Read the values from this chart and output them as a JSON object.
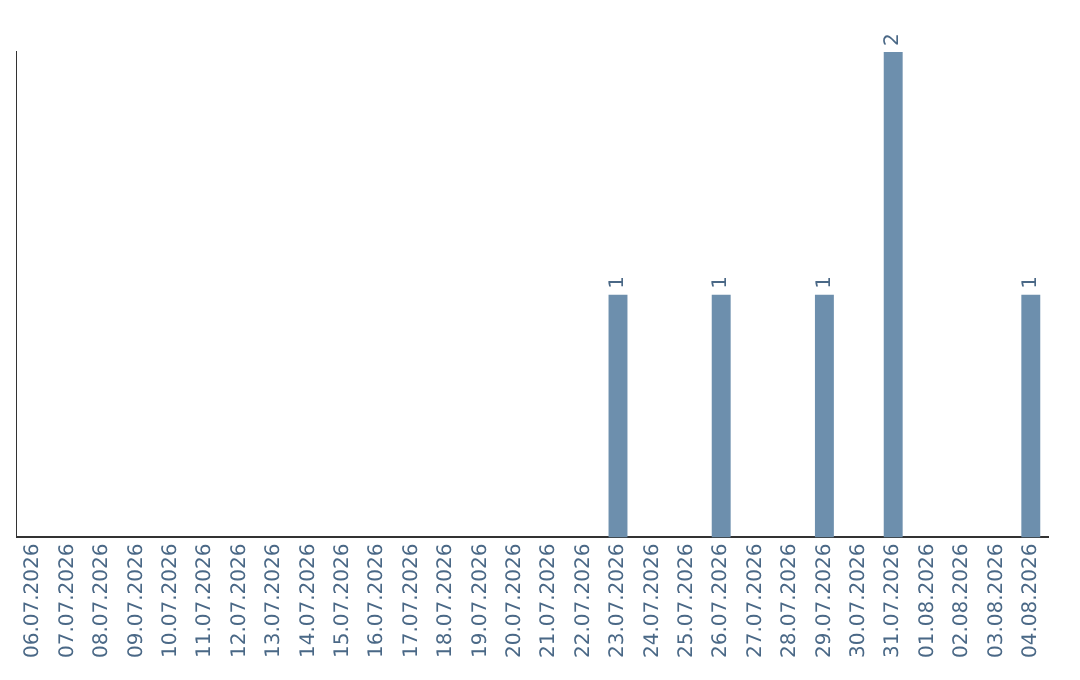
{
  "chart_data": {
    "type": "bar",
    "categories": [
      "06.07.2026",
      "07.07.2026",
      "08.07.2026",
      "09.07.2026",
      "10.07.2026",
      "11.07.2026",
      "12.07.2026",
      "13.07.2026",
      "14.07.2026",
      "15.07.2026",
      "16.07.2026",
      "17.07.2026",
      "18.07.2026",
      "19.07.2026",
      "20.07.2026",
      "21.07.2026",
      "22.07.2026",
      "23.07.2026",
      "24.07.2026",
      "25.07.2026",
      "26.07.2026",
      "27.07.2026",
      "28.07.2026",
      "29.07.2026",
      "30.07.2026",
      "31.07.2026",
      "01.08.2026",
      "02.08.2026",
      "03.08.2026",
      "04.08.2026"
    ],
    "values": [
      null,
      null,
      null,
      null,
      null,
      null,
      null,
      null,
      null,
      null,
      null,
      null,
      null,
      null,
      null,
      null,
      null,
      1,
      null,
      null,
      1,
      null,
      null,
      1,
      null,
      2,
      null,
      null,
      null,
      1
    ],
    "data_labels": true,
    "color": "#6d8fad",
    "grid": false,
    "legend": false,
    "tick_labels": "x"
  }
}
